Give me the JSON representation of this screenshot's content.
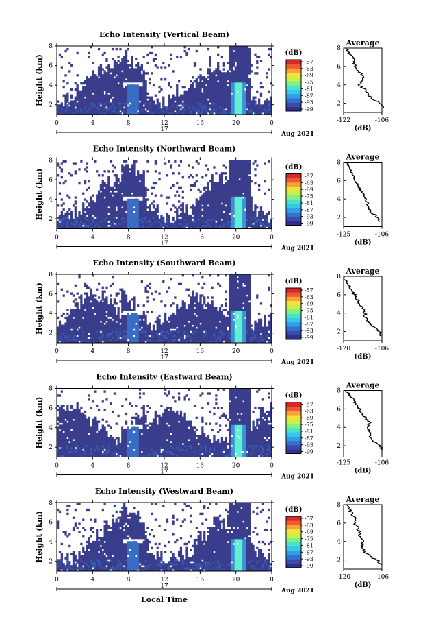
{
  "figure": {
    "xlabel": "Local Time",
    "date_label": "17",
    "month_label": "Aug 2021",
    "colorbar_unit": "(dB)",
    "colorbar_ticks": [
      "-57",
      "-63",
      "-69",
      "-75",
      "-81",
      "-87",
      "-93",
      "-99"
    ],
    "colormap": [
      "#2e2f8f",
      "#3c4aa8",
      "#3470d0",
      "#2f9ee6",
      "#35c8e8",
      "#4fe0c8",
      "#7ff08a",
      "#c6f04a",
      "#f4e23a",
      "#f7a23a",
      "#f05a32",
      "#d42a28"
    ],
    "background_color": "#3a3d8c",
    "core_color": "#5ff0d0"
  },
  "chart_data": [
    {
      "type": "heatmap",
      "title": "Echo Intensity (Vertical Beam)",
      "ylabel": "Height (km)",
      "x_ticks": [
        "0",
        "4",
        "8",
        "12",
        "16",
        "20",
        "0"
      ],
      "x_range_hours": [
        0,
        24
      ],
      "y_ticks": [
        "2",
        "4",
        "6",
        "8"
      ],
      "y_range_km": [
        1,
        8
      ],
      "colorbar_range_db": [
        -99,
        -57
      ],
      "seed": 11,
      "average": {
        "title": "Average",
        "xlabel": "(dB)",
        "x_ticks": [
          "-122",
          "-106"
        ],
        "x_range": [
          -122,
          -106
        ],
        "y_ticks": [
          "2",
          "4",
          "6",
          "8"
        ],
        "profile_height_km": [
          1.5,
          2.0,
          2.5,
          3.0,
          3.5,
          4.0,
          4.5,
          5.0,
          5.5,
          6.0,
          6.5,
          7.0,
          7.5,
          8.0
        ],
        "profile_db": [
          -105,
          -107,
          -110,
          -112,
          -113,
          -116,
          -114,
          -114,
          -116,
          -117,
          -118,
          -118,
          -120,
          -121
        ]
      }
    },
    {
      "type": "heatmap",
      "title": "Echo Intensity (Northward Beam)",
      "ylabel": "Height (km)",
      "x_ticks": [
        "0",
        "4",
        "8",
        "12",
        "16",
        "20",
        "0"
      ],
      "x_range_hours": [
        0,
        24
      ],
      "y_ticks": [
        "2",
        "4",
        "6",
        "8"
      ],
      "y_range_km": [
        1,
        8
      ],
      "colorbar_range_db": [
        -99,
        -57
      ],
      "seed": 23,
      "average": {
        "title": "Average",
        "xlabel": "(dB)",
        "x_ticks": [
          "-125",
          "-106"
        ],
        "x_range": [
          -125,
          -106
        ],
        "y_ticks": [
          "2",
          "4",
          "6",
          "8"
        ],
        "profile_height_km": [
          1.5,
          2.0,
          2.5,
          3.0,
          3.5,
          4.0,
          4.5,
          5.0,
          5.5,
          6.0,
          6.5,
          7.0,
          7.5,
          8.0
        ],
        "profile_db": [
          -107,
          -108,
          -111,
          -113,
          -113,
          -114,
          -115,
          -117,
          -118,
          -119,
          -120,
          -121,
          -122,
          -124
        ]
      }
    },
    {
      "type": "heatmap",
      "title": "Echo Intensity (Southward Beam)",
      "ylabel": "Height (km)",
      "x_ticks": [
        "0",
        "4",
        "8",
        "12",
        "16",
        "20",
        "0"
      ],
      "x_range_hours": [
        0,
        24
      ],
      "y_ticks": [
        "2",
        "4",
        "6",
        "8"
      ],
      "y_range_km": [
        1,
        8
      ],
      "colorbar_range_db": [
        -99,
        -57
      ],
      "seed": 37,
      "average": {
        "title": "Average",
        "xlabel": "(dB)",
        "x_ticks": [
          "-120",
          "-106"
        ],
        "x_range": [
          -120,
          -106
        ],
        "y_ticks": [
          "2",
          "4",
          "6",
          "8"
        ],
        "profile_height_km": [
          1.5,
          2.0,
          2.5,
          3.0,
          3.5,
          4.0,
          4.5,
          5.0,
          5.5,
          6.0,
          6.5,
          7.0,
          7.5,
          8.0
        ],
        "profile_db": [
          -106,
          -107,
          -109,
          -111,
          -112,
          -112,
          -113,
          -114,
          -115,
          -116,
          -117,
          -118,
          -119,
          -120
        ]
      }
    },
    {
      "type": "heatmap",
      "title": "Echo Intensity (Eastward Beam)",
      "ylabel": "Height (km)",
      "x_ticks": [
        "0",
        "4",
        "8",
        "12",
        "16",
        "20",
        "0"
      ],
      "x_range_hours": [
        0,
        24
      ],
      "y_ticks": [
        "2",
        "4",
        "6",
        "8"
      ],
      "y_range_km": [
        1,
        8
      ],
      "colorbar_range_db": [
        -99,
        -57
      ],
      "seed": 51,
      "average": {
        "title": "Average",
        "xlabel": "(dB)",
        "x_ticks": [
          "-125",
          "-106"
        ],
        "x_range": [
          -125,
          -106
        ],
        "y_ticks": [
          "2",
          "4",
          "6",
          "8"
        ],
        "profile_height_km": [
          1.5,
          2.0,
          2.5,
          3.0,
          3.5,
          4.0,
          4.5,
          5.0,
          5.5,
          6.0,
          6.5,
          7.0,
          7.5,
          8.0
        ],
        "profile_db": [
          -106,
          -107,
          -110,
          -112,
          -112,
          -113,
          -112,
          -114,
          -116,
          -117,
          -119,
          -120,
          -122,
          -124
        ]
      }
    },
    {
      "type": "heatmap",
      "title": "Echo Intensity (Westward Beam)",
      "ylabel": "Height (km)",
      "x_ticks": [
        "0",
        "4",
        "8",
        "12",
        "16",
        "20",
        "0"
      ],
      "x_range_hours": [
        0,
        24
      ],
      "y_ticks": [
        "2",
        "4",
        "6",
        "8"
      ],
      "y_range_km": [
        1,
        8
      ],
      "colorbar_range_db": [
        -99,
        -57
      ],
      "seed": 67,
      "average": {
        "title": "Average",
        "xlabel": "(dB)",
        "x_ticks": [
          "-120",
          "-106"
        ],
        "x_range": [
          -120,
          -106
        ],
        "y_ticks": [
          "2",
          "4",
          "6",
          "8"
        ],
        "profile_height_km": [
          1.5,
          2.0,
          2.5,
          3.0,
          3.5,
          4.0,
          4.5,
          5.0,
          5.5,
          6.0,
          6.5,
          7.0,
          7.5,
          8.0
        ],
        "profile_db": [
          -106,
          -108,
          -111,
          -113,
          -113,
          -113,
          -114,
          -114,
          -115,
          -116,
          -116,
          -117,
          -118,
          -119
        ]
      }
    }
  ]
}
